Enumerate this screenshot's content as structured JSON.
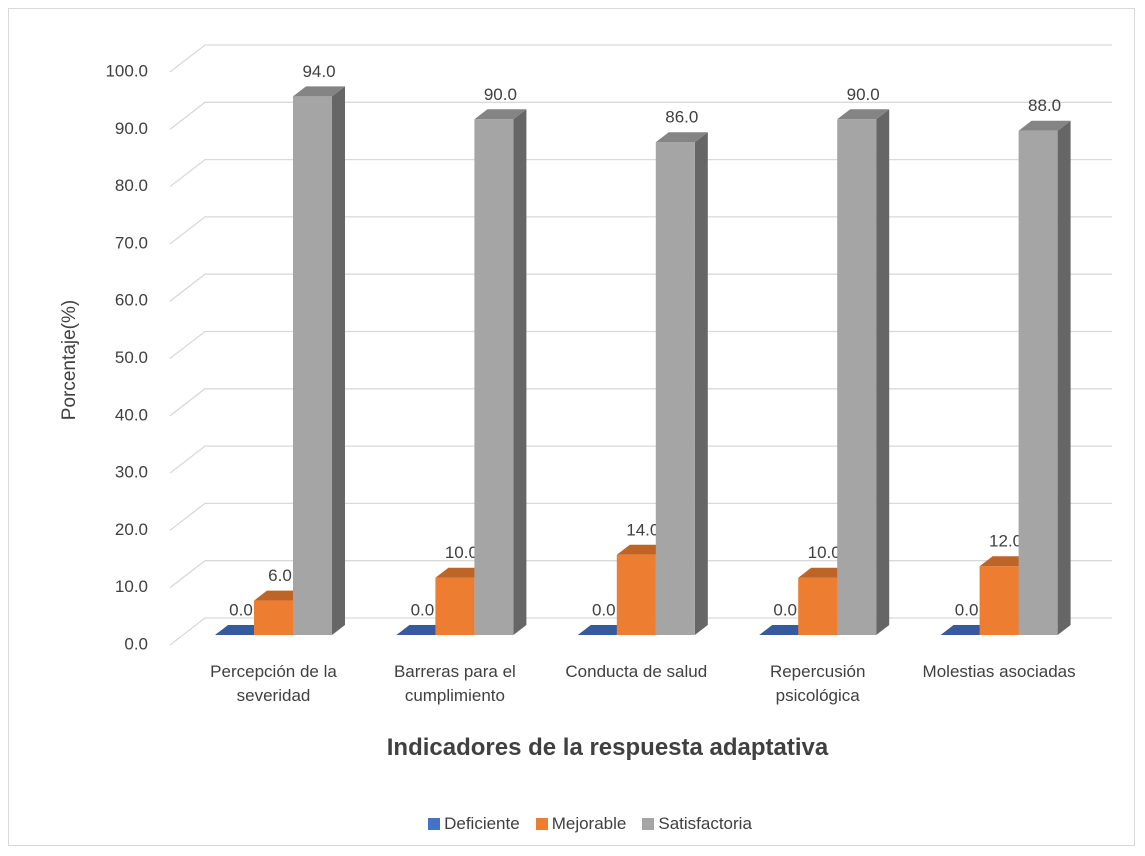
{
  "chart_data": {
    "type": "bar3d",
    "x_label": "Indicadores de la respuesta adaptativa",
    "y_label": "Porcentaje(%)",
    "categories": [
      "Percepción de la severidad",
      "Barreras para el cumplimiento",
      "Conducta de salud",
      "Repercusión psicológica",
      "Molestias asociadas"
    ],
    "series": [
      {
        "name": "Deficiente",
        "color": "#4472c4",
        "values": [
          0,
          0,
          0,
          0,
          0
        ],
        "value_labels": [
          "0.0",
          "0.0",
          "0.0",
          "0.0",
          "0.0"
        ]
      },
      {
        "name": "Mejorable",
        "color": "#ed7d31",
        "values": [
          6,
          10,
          14,
          10,
          12
        ],
        "value_labels": [
          "6.0",
          "10.0",
          "14.0",
          "10.0",
          "12.0"
        ]
      },
      {
        "name": "Satisfactoria",
        "color": "#a5a5a5",
        "values": [
          94,
          90,
          86,
          90,
          88
        ],
        "value_labels": [
          "94.0",
          "90.0",
          "86.0",
          "90.0",
          "88.0"
        ]
      }
    ],
    "ylim": [
      0,
      100
    ],
    "yticks": [
      {
        "value": 0,
        "label": "0.0"
      },
      {
        "value": 10,
        "label": "10.0"
      },
      {
        "value": 20,
        "label": "20.0"
      },
      {
        "value": 30,
        "label": "30.0"
      },
      {
        "value": 40,
        "label": "40.0"
      },
      {
        "value": 50,
        "label": "50.0"
      },
      {
        "value": 60,
        "label": "60.0"
      },
      {
        "value": 70,
        "label": "70.0"
      },
      {
        "value": 80,
        "label": "80.0"
      },
      {
        "value": 90,
        "label": "90.0"
      },
      {
        "value": 100,
        "label": "100.0"
      }
    ],
    "grid": true,
    "legend": "bottom"
  }
}
